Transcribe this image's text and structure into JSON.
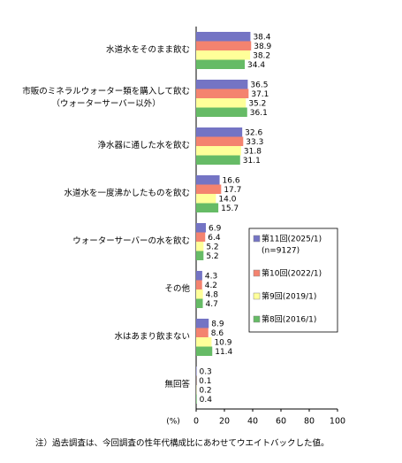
{
  "chart_data": {
    "type": "bar",
    "orientation": "horizontal",
    "categories": [
      "水道水をそのまま飲む",
      "市販のミネラルウォーター類を購入して飲む\n（ウォーターサーバー以外）",
      "浄水器に通した水を飲む",
      "水道水を一度沸かしたものを飲む",
      "ウォーターサーバーの水を飲む",
      "その他",
      "水はあまり飲まない",
      "無回答"
    ],
    "series": [
      {
        "name": "第11回(2025/1)",
        "note": "(n=9127)",
        "color": "#7474c4",
        "values": [
          38.4,
          36.5,
          32.6,
          16.6,
          6.9,
          4.3,
          8.9,
          0.3
        ]
      },
      {
        "name": "第10回(2022/1)",
        "color": "#f4836f",
        "values": [
          38.9,
          37.1,
          33.3,
          17.7,
          6.4,
          4.2,
          8.6,
          0.1
        ]
      },
      {
        "name": "第9回(2019/1)",
        "color": "#ffff99",
        "values": [
          38.2,
          35.2,
          31.8,
          14.0,
          5.2,
          4.8,
          10.9,
          0.2
        ],
        "value_labels": [
          "38.2",
          "35.2",
          "31.8",
          "14.0",
          "5.2",
          "4.8",
          "10.9",
          "0.2"
        ]
      },
      {
        "name": "第8回(2016/1)",
        "color": "#66bb66",
        "values": [
          34.4,
          36.1,
          31.1,
          15.7,
          5.2,
          4.7,
          11.4,
          0.4
        ]
      }
    ],
    "xlabel": "(%)",
    "xlim": [
      0,
      100
    ],
    "xticks": [
      0,
      20,
      40,
      60,
      80,
      100
    ],
    "footnote": "注）過去調査は、今回調査の性年代構成比にあわせてウエイトバックした値。"
  }
}
